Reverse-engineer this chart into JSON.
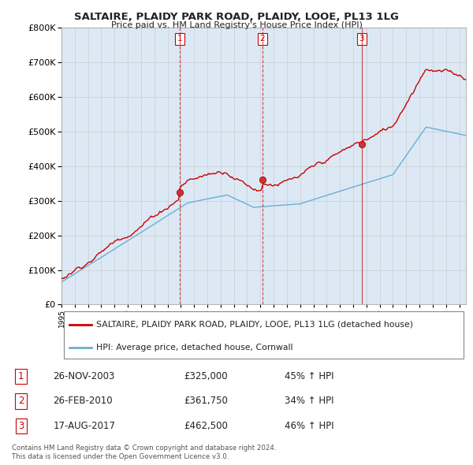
{
  "title": "SALTAIRE, PLAIDY PARK ROAD, PLAIDY, LOOE, PL13 1LG",
  "subtitle": "Price paid vs. HM Land Registry's House Price Index (HPI)",
  "legend_property": "SALTAIRE, PLAIDY PARK ROAD, PLAIDY, LOOE, PL13 1LG (detached house)",
  "legend_hpi": "HPI: Average price, detached house, Cornwall",
  "footer_line1": "Contains HM Land Registry data © Crown copyright and database right 2024.",
  "footer_line2": "This data is licensed under the Open Government Licence v3.0.",
  "sales": [
    {
      "date": 2003.91,
      "price": 325000,
      "label": "1"
    },
    {
      "date": 2010.16,
      "price": 361750,
      "label": "2"
    },
    {
      "date": 2017.63,
      "price": 462500,
      "label": "3"
    }
  ],
  "sale_table": [
    {
      "label": "1",
      "date": "26-NOV-2003",
      "price": "£325,000",
      "change": "45% ↑ HPI"
    },
    {
      "label": "2",
      "date": "26-FEB-2010",
      "price": "£361,750",
      "change": "34% ↑ HPI"
    },
    {
      "label": "3",
      "date": "17-AUG-2017",
      "price": "£462,500",
      "change": "46% ↑ HPI"
    }
  ],
  "property_color": "#cc0000",
  "hpi_color": "#6baed6",
  "vline_color": "#cc0000",
  "background_color": "#dce9f5",
  "plot_bg": "#ffffff",
  "ylim": [
    0,
    800000
  ],
  "yticks": [
    0,
    100000,
    200000,
    300000,
    400000,
    500000,
    600000,
    700000,
    800000
  ],
  "xmin": 1995,
  "xmax": 2025.5
}
